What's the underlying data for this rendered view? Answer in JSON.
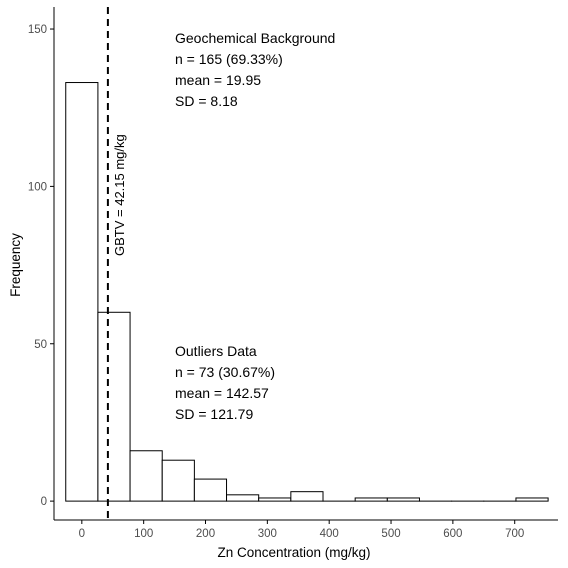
{
  "chart_data": {
    "type": "bar",
    "subtype": "histogram",
    "xlabel": "Zn Concentration (mg/kg)",
    "ylabel": "Frequency",
    "xlim": [
      -45,
      770
    ],
    "ylim": [
      -6,
      157
    ],
    "x_ticks": [
      0,
      100,
      200,
      300,
      400,
      500,
      600,
      700
    ],
    "y_ticks": [
      0,
      50,
      100,
      150
    ],
    "bin_width": 52,
    "bins": [
      {
        "x0": -26,
        "x1": 26,
        "count": 133
      },
      {
        "x0": 26,
        "x1": 78,
        "count": 60
      },
      {
        "x0": 78,
        "x1": 130,
        "count": 16
      },
      {
        "x0": 130,
        "x1": 182,
        "count": 13
      },
      {
        "x0": 182,
        "x1": 234,
        "count": 7
      },
      {
        "x0": 234,
        "x1": 286,
        "count": 2
      },
      {
        "x0": 286,
        "x1": 338,
        "count": 1
      },
      {
        "x0": 338,
        "x1": 390,
        "count": 3
      },
      {
        "x0": 390,
        "x1": 442,
        "count": 0
      },
      {
        "x0": 442,
        "x1": 494,
        "count": 1
      },
      {
        "x0": 494,
        "x1": 546,
        "count": 1
      },
      {
        "x0": 546,
        "x1": 598,
        "count": 0
      },
      {
        "x0": 598,
        "x1": 650,
        "count": 0
      },
      {
        "x0": 650,
        "x1": 702,
        "count": 0
      },
      {
        "x0": 702,
        "x1": 754,
        "count": 1
      }
    ],
    "reference_line": {
      "x": 42.15,
      "label": "GBTV = 42.15 mg/kg",
      "style": "dashed"
    },
    "annotations": {
      "background": {
        "title": "Geochemical Background",
        "n": "n = 165 (69.33%)",
        "mean": "mean = 19.95",
        "sd": "SD = 8.18"
      },
      "outliers": {
        "title": "Outliers Data",
        "n": "n = 73 (30.67%)",
        "mean": "mean = 142.57",
        "sd": "SD = 121.79"
      }
    },
    "colors": {
      "bar_fill": "#ffffff",
      "bar_stroke": "#000000",
      "axis": "#000000",
      "tick_label": "#4d4d4d"
    }
  }
}
